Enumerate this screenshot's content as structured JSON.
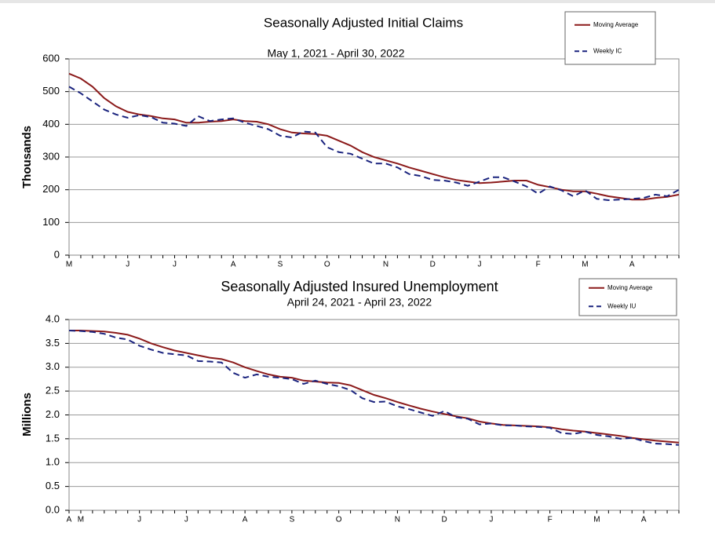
{
  "chart_data": [
    {
      "type": "line",
      "title": "Seasonally Adjusted Initial Claims",
      "subtitle": "May 1, 2021 - April 30, 2022",
      "y_label": "Thousands",
      "categories": [
        "M",
        null,
        null,
        null,
        null,
        "J",
        null,
        null,
        null,
        "J",
        null,
        null,
        null,
        null,
        "A",
        null,
        null,
        null,
        "S",
        null,
        null,
        null,
        "O",
        null,
        null,
        null,
        null,
        "N",
        null,
        null,
        null,
        "D",
        null,
        null,
        null,
        "J",
        null,
        null,
        null,
        null,
        "F",
        null,
        null,
        null,
        "M",
        null,
        null,
        null,
        "A",
        null,
        null,
        null,
        null
      ],
      "ylim": [
        0,
        600
      ],
      "yticks": [
        0,
        100,
        200,
        300,
        400,
        500,
        600
      ],
      "grid": true,
      "legend": "upper right",
      "series": [
        {
          "name": "Moving Average",
          "color": "#8b1a1a",
          "line_style": "solid",
          "values": [
            555,
            540,
            515,
            480,
            455,
            438,
            430,
            425,
            418,
            415,
            405,
            405,
            408,
            410,
            415,
            410,
            408,
            400,
            385,
            375,
            372,
            370,
            365,
            350,
            335,
            315,
            300,
            290,
            280,
            268,
            258,
            248,
            238,
            230,
            225,
            220,
            222,
            225,
            228,
            228,
            215,
            208,
            200,
            195,
            195,
            188,
            180,
            175,
            170,
            170,
            175,
            178,
            185
          ]
        },
        {
          "name": "Weekly IC",
          "color": "#1a237e",
          "line_style": "dashed",
          "values": [
            515,
            495,
            470,
            445,
            430,
            420,
            428,
            422,
            405,
            402,
            395,
            425,
            410,
            415,
            418,
            405,
            395,
            385,
            365,
            360,
            378,
            375,
            330,
            315,
            310,
            295,
            280,
            280,
            268,
            248,
            242,
            230,
            228,
            222,
            212,
            225,
            238,
            238,
            225,
            210,
            188,
            210,
            198,
            180,
            198,
            172,
            168,
            170,
            172,
            175,
            185,
            180,
            200
          ]
        }
      ]
    },
    {
      "type": "line",
      "title": "Seasonally Adjusted Insured Unemployment",
      "subtitle": "April 24, 2021 - April 23, 2022",
      "y_label": "Millions",
      "categories": [
        "A",
        "M",
        null,
        null,
        null,
        null,
        "J",
        null,
        null,
        null,
        "J",
        null,
        null,
        null,
        null,
        "A",
        null,
        null,
        null,
        "S",
        null,
        null,
        null,
        "O",
        null,
        null,
        null,
        null,
        "N",
        null,
        null,
        null,
        "D",
        null,
        null,
        null,
        "J",
        null,
        null,
        null,
        null,
        "F",
        null,
        null,
        null,
        "M",
        null,
        null,
        null,
        "A",
        null,
        null,
        null
      ],
      "ylim": [
        0,
        4
      ],
      "yticks": [
        {
          "value": 0,
          "label": "0.0"
        },
        0.5,
        {
          "value": 1,
          "label": "1.0"
        },
        1.5,
        {
          "value": 2,
          "label": "2.0"
        },
        2.5,
        {
          "value": 3,
          "label": "3.0"
        },
        3.5,
        {
          "value": 4,
          "label": "4.0"
        }
      ],
      "grid": true,
      "legend": "upper right",
      "series": [
        {
          "name": "Moving Average",
          "color": "#8b1a1a",
          "line_style": "solid",
          "values": [
            3.77,
            3.77,
            3.76,
            3.75,
            3.72,
            3.68,
            3.6,
            3.5,
            3.42,
            3.35,
            3.3,
            3.25,
            3.2,
            3.17,
            3.1,
            3.0,
            2.92,
            2.85,
            2.8,
            2.78,
            2.72,
            2.7,
            2.68,
            2.67,
            2.62,
            2.52,
            2.42,
            2.35,
            2.27,
            2.2,
            2.13,
            2.07,
            2.02,
            1.97,
            1.93,
            1.86,
            1.82,
            1.79,
            1.78,
            1.77,
            1.76,
            1.74,
            1.7,
            1.67,
            1.65,
            1.62,
            1.59,
            1.56,
            1.52,
            1.49,
            1.46,
            1.44,
            1.42
          ]
        },
        {
          "name": "Weekly IU",
          "color": "#1a237e",
          "line_style": "dashed",
          "values": [
            3.77,
            3.76,
            3.74,
            3.7,
            3.62,
            3.58,
            3.45,
            3.37,
            3.3,
            3.27,
            3.25,
            3.13,
            3.12,
            3.1,
            2.88,
            2.78,
            2.85,
            2.8,
            2.78,
            2.75,
            2.65,
            2.72,
            2.65,
            2.6,
            2.52,
            2.35,
            2.27,
            2.28,
            2.18,
            2.12,
            2.05,
            1.98,
            2.08,
            1.95,
            1.92,
            1.8,
            1.82,
            1.78,
            1.78,
            1.76,
            1.75,
            1.73,
            1.62,
            1.6,
            1.65,
            1.58,
            1.55,
            1.5,
            1.52,
            1.45,
            1.4,
            1.39,
            1.37
          ]
        }
      ]
    }
  ]
}
